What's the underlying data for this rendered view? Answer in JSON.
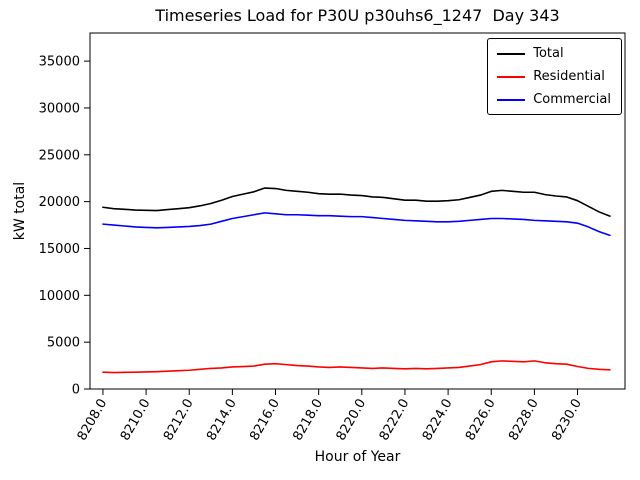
{
  "figure": {
    "title": "Timeseries Load for P30U p30uhs6_1247  Day 343",
    "xlabel": "Hour of Year",
    "ylabel": "kW total"
  },
  "chart_data": {
    "type": "line",
    "title": "Timeseries Load for P30U p30uhs6_1247  Day 343",
    "xlabel": "Hour of Year",
    "ylabel": "kW total",
    "xlim": [
      8207.4,
      8232.2
    ],
    "ylim": [
      0,
      38000
    ],
    "xticks": [
      8208,
      8210,
      8212,
      8214,
      8216,
      8218,
      8220,
      8222,
      8224,
      8226,
      8228,
      8230
    ],
    "xtick_labels": [
      "8208.0",
      "8210.0",
      "8212.0",
      "8214.0",
      "8216.0",
      "8218.0",
      "8220.0",
      "8222.0",
      "8224.0",
      "8226.0",
      "8228.0",
      "8230.0"
    ],
    "yticks": [
      0,
      5000,
      10000,
      15000,
      20000,
      25000,
      30000,
      35000
    ],
    "grid": false,
    "legend_position": "upper right",
    "x": [
      8208,
      8208.5,
      8209,
      8209.5,
      8210,
      8210.5,
      8211,
      8211.5,
      8212,
      8212.5,
      8213,
      8213.5,
      8214,
      8214.5,
      8215,
      8215.5,
      8216,
      8216.5,
      8217,
      8217.5,
      8218,
      8218.5,
      8219,
      8219.5,
      8220,
      8220.5,
      8221,
      8221.5,
      8222,
      8222.5,
      8223,
      8223.5,
      8224,
      8224.5,
      8225,
      8225.5,
      8226,
      8226.5,
      8227,
      8227.5,
      8228,
      8228.5,
      8229,
      8229.5,
      8230,
      8230.5,
      8231,
      8231.5
    ],
    "series": [
      {
        "name": "Total",
        "color": "#000000",
        "values": [
          19400,
          19250,
          19180,
          19100,
          19070,
          19050,
          19150,
          19250,
          19350,
          19550,
          19800,
          20150,
          20550,
          20800,
          21050,
          21450,
          21400,
          21200,
          21100,
          21000,
          20850,
          20800,
          20800,
          20700,
          20650,
          20500,
          20450,
          20300,
          20150,
          20150,
          20050,
          20050,
          20100,
          20200,
          20450,
          20700,
          21100,
          21200,
          21100,
          21000,
          21000,
          20750,
          20600,
          20500,
          20100,
          19500,
          18900,
          18450
        ]
      },
      {
        "name": "Residential",
        "color": "#ff0000",
        "values": [
          1800,
          1750,
          1780,
          1800,
          1820,
          1850,
          1900,
          1950,
          2000,
          2100,
          2200,
          2250,
          2350,
          2400,
          2450,
          2650,
          2700,
          2600,
          2500,
          2450,
          2350,
          2300,
          2350,
          2300,
          2250,
          2200,
          2250,
          2200,
          2150,
          2200,
          2150,
          2200,
          2250,
          2300,
          2450,
          2600,
          2900,
          3000,
          2950,
          2900,
          3000,
          2800,
          2700,
          2650,
          2400,
          2200,
          2100,
          2050
        ]
      },
      {
        "name": "Commercial",
        "color": "#0000ff",
        "values": [
          17600,
          17500,
          17400,
          17300,
          17250,
          17200,
          17250,
          17300,
          17350,
          17450,
          17600,
          17900,
          18200,
          18400,
          18600,
          18800,
          18700,
          18600,
          18600,
          18550,
          18500,
          18500,
          18450,
          18400,
          18400,
          18300,
          18200,
          18100,
          18000,
          17950,
          17900,
          17850,
          17850,
          17900,
          18000,
          18100,
          18200,
          18200,
          18150,
          18100,
          18000,
          17950,
          17900,
          17850,
          17700,
          17300,
          16800,
          16400
        ]
      }
    ]
  }
}
